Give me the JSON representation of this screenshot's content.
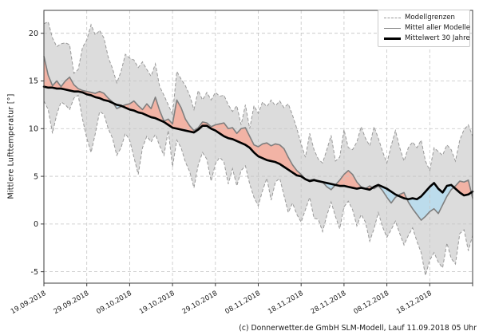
{
  "y_axis": {
    "label": "Mittlere Lufttemperatur [°]",
    "ticks": [
      20,
      15,
      10,
      5,
      0,
      -5
    ]
  },
  "x_axis": {
    "tick_labels": [
      "19.09.2018",
      "29.09.2018",
      "09.10.2018",
      "19.10.2018",
      "29.10.2018",
      "08.11.2018",
      "18.11.2018",
      "28.11.2018",
      "08.12.2018",
      "18.12.2018"
    ],
    "tick_days": [
      0,
      10,
      20,
      30,
      40,
      50,
      60,
      70,
      80,
      90
    ],
    "gridline_days": [
      0,
      10,
      20,
      30,
      40,
      50,
      60,
      70,
      80,
      90,
      100
    ]
  },
  "legend": {
    "items": [
      {
        "label": "Modellgrenzen",
        "line": "dashed-gray"
      },
      {
        "label": "Mittel aller Modelle",
        "line": "solid-gray"
      },
      {
        "label": "Mittelwert 30 Jahre",
        "line": "thick-black"
      }
    ]
  },
  "footer": {
    "credit": "(c) Donnerwetter.de GmbH SLM-Modell, Lauf 11.09.2018 05 Uhr"
  },
  "colors": {
    "band_fill": "#dcdcdc",
    "band_edge": "#999999",
    "above_normal_fill": "#f2b3a5",
    "below_normal_fill": "#bcdcec",
    "model_mean_line": "#7f7f7f",
    "climate_mean_line": "#000000",
    "grid": "#c4c4c4",
    "spine": "#3c3c3c",
    "text": "#1a1a1a"
  },
  "chart_data": {
    "type": "line",
    "title": "",
    "xlabel": "",
    "ylabel": "Mittlere Lufttemperatur [°]",
    "x_unit": "days since 19.09.2018 (daily values)",
    "x_start_date": "19.09.2018",
    "x_end_date": "28.12.2018",
    "total_days": 100,
    "ylim": [
      -6.2,
      22.4
    ],
    "grid": true,
    "legend_position": "top-right",
    "fills": {
      "above": "Modellmittel ueber Mittelwert 30 Jahre (rot)",
      "below": "Modellmittel unter Mittelwert 30 Jahre (blau)",
      "band": "Modellgrenzen (grau)"
    },
    "series": [
      {
        "name": "Modellgrenzen max",
        "values": [
          21.0,
          21.2,
          19.5,
          18.6,
          18.9,
          19.0,
          18.8,
          15.8,
          16.2,
          18.5,
          19.3,
          20.9,
          19.8,
          20.3,
          19.5,
          17.5,
          16.3,
          14.8,
          16.0,
          17.8,
          17.4,
          17.2,
          16.4,
          17.0,
          16.2,
          15.5,
          16.8,
          14.4,
          13.5,
          12.5,
          11.5,
          16.0,
          15.2,
          14.5,
          13.5,
          12.0,
          14.0,
          13.0,
          13.8,
          13.0,
          13.8,
          13.4,
          13.5,
          12.5,
          11.8,
          12.4,
          10.4,
          12.5,
          10.0,
          12.4,
          11.6,
          12.8,
          12.3,
          13.0,
          12.4,
          12.9,
          12.2,
          12.6,
          11.4,
          10.0,
          8.4,
          7.0,
          9.5,
          7.8,
          6.8,
          6.4,
          7.8,
          9.3,
          6.6,
          7.0,
          9.9,
          8.0,
          7.8,
          8.6,
          10.2,
          9.0,
          8.2,
          10.2,
          9.0,
          7.6,
          6.4,
          8.2,
          9.8,
          8.0,
          6.6,
          8.0,
          8.6,
          8.0,
          8.8,
          6.6,
          5.6,
          8.0,
          7.6,
          7.2,
          8.3,
          7.8,
          6.6,
          8.8,
          9.9,
          10.4,
          9.2
        ]
      },
      {
        "name": "Modellgrenzen min",
        "values": [
          12.9,
          12.0,
          9.5,
          11.5,
          12.8,
          12.5,
          12.0,
          13.2,
          13.5,
          11.0,
          9.0,
          7.5,
          9.5,
          11.8,
          11.5,
          10.0,
          9.0,
          7.2,
          8.0,
          9.5,
          8.8,
          7.0,
          5.2,
          8.0,
          9.2,
          8.6,
          9.4,
          8.2,
          7.2,
          9.8,
          6.0,
          8.8,
          8.0,
          6.5,
          5.5,
          3.8,
          6.2,
          7.5,
          6.8,
          4.5,
          6.3,
          7.0,
          6.5,
          4.2,
          5.8,
          4.0,
          5.6,
          6.1,
          4.2,
          2.8,
          1.9,
          3.5,
          4.8,
          2.5,
          4.4,
          4.8,
          3.0,
          1.2,
          2.2,
          1.0,
          0.2,
          1.5,
          2.8,
          0.6,
          0.5,
          -0.8,
          0.9,
          2.3,
          0.8,
          -0.5,
          1.8,
          2.4,
          1.5,
          -0.2,
          1.0,
          0.2,
          -1.8,
          -0.5,
          1.2,
          -0.3,
          -1.4,
          -0.6,
          0.3,
          -1.0,
          -2.2,
          -1.2,
          -0.4,
          -1.8,
          -3.0,
          -5.4,
          -3.8,
          -3.0,
          -4.0,
          -4.6,
          -2.0,
          -3.6,
          -4.2,
          -1.0,
          -0.6,
          -2.8,
          -1.2
        ]
      },
      {
        "name": "Mittel aller Modelle",
        "values": [
          17.6,
          15.6,
          14.5,
          15.0,
          14.4,
          15.0,
          15.4,
          14.6,
          14.2,
          14.0,
          13.9,
          13.8,
          13.7,
          13.9,
          13.7,
          13.2,
          12.8,
          12.1,
          12.3,
          12.5,
          12.6,
          12.9,
          12.4,
          12.0,
          12.6,
          12.1,
          13.3,
          11.9,
          10.8,
          11.0,
          10.5,
          13.0,
          12.2,
          11.0,
          10.3,
          9.8,
          10.1,
          10.7,
          10.6,
          10.2,
          10.4,
          10.5,
          10.6,
          10.0,
          10.1,
          9.5,
          10.0,
          10.1,
          9.2,
          8.3,
          8.1,
          8.4,
          8.5,
          8.2,
          8.4,
          8.3,
          7.9,
          7.0,
          6.2,
          5.6,
          5.2,
          4.7,
          4.6,
          4.7,
          4.5,
          4.4,
          3.9,
          3.6,
          4.1,
          4.6,
          5.2,
          5.6,
          5.2,
          4.4,
          3.9,
          3.7,
          4.0,
          3.7,
          4.0,
          3.5,
          2.8,
          2.2,
          2.8,
          3.1,
          3.3,
          2.3,
          1.6,
          1.0,
          0.4,
          0.8,
          1.3,
          1.6,
          1.1,
          2.0,
          2.9,
          3.6,
          4.0,
          4.5,
          4.4,
          4.6,
          2.7
        ]
      },
      {
        "name": "Mittelwert 30 Jahre",
        "values": [
          14.4,
          14.3,
          14.3,
          14.2,
          14.2,
          14.1,
          14.0,
          13.9,
          13.9,
          13.8,
          13.6,
          13.5,
          13.3,
          13.2,
          13.0,
          12.9,
          12.7,
          12.5,
          12.4,
          12.2,
          12.0,
          11.9,
          11.7,
          11.6,
          11.4,
          11.2,
          11.1,
          10.9,
          10.7,
          10.4,
          10.1,
          10.0,
          9.9,
          9.8,
          9.7,
          9.6,
          9.9,
          10.3,
          10.3,
          10.0,
          9.8,
          9.5,
          9.2,
          9.0,
          8.9,
          8.7,
          8.5,
          8.3,
          8.0,
          7.5,
          7.1,
          6.9,
          6.7,
          6.6,
          6.5,
          6.3,
          6.0,
          5.7,
          5.4,
          5.1,
          5.0,
          4.7,
          4.5,
          4.6,
          4.5,
          4.4,
          4.3,
          4.2,
          4.1,
          4.0,
          4.0,
          3.9,
          3.8,
          3.7,
          3.8,
          3.7,
          3.6,
          3.9,
          4.1,
          3.9,
          3.7,
          3.4,
          3.1,
          2.9,
          2.7,
          2.6,
          2.7,
          2.6,
          2.9,
          3.4,
          3.9,
          4.3,
          3.7,
          3.3,
          4.0,
          4.1,
          3.7,
          3.3,
          3.0,
          3.1,
          3.4
        ]
      }
    ]
  }
}
